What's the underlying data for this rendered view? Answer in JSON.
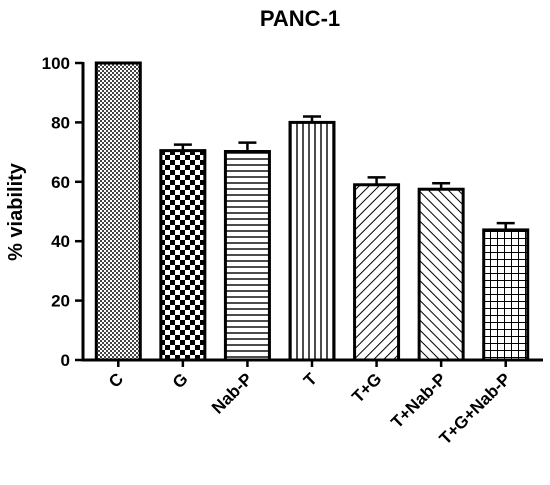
{
  "chart_data": {
    "type": "bar",
    "title": "PANC-1",
    "xlabel": "",
    "ylabel": "% viability",
    "ylim": [
      0,
      100
    ],
    "yticks": [
      0,
      20,
      40,
      60,
      80,
      100
    ],
    "categories": [
      "C",
      "G",
      "Nab-P",
      "T",
      "T+G",
      "T+Nab-P",
      "T+G+Nab-P"
    ],
    "values": [
      100,
      70.5,
      70.2,
      80.0,
      59.0,
      57.5,
      43.8
    ],
    "errors": [
      0,
      2.0,
      3.0,
      2.0,
      2.5,
      2.0,
      2.3
    ],
    "patterns": [
      "fine-checker",
      "checker",
      "horizontal-lines",
      "vertical-lines",
      "diagonal-forward",
      "diagonal-back",
      "grid"
    ],
    "grid": false,
    "legend": "none",
    "colors": {
      "bar_stroke": "#000000",
      "fill": "#ffffff",
      "ink": "#000000"
    }
  }
}
